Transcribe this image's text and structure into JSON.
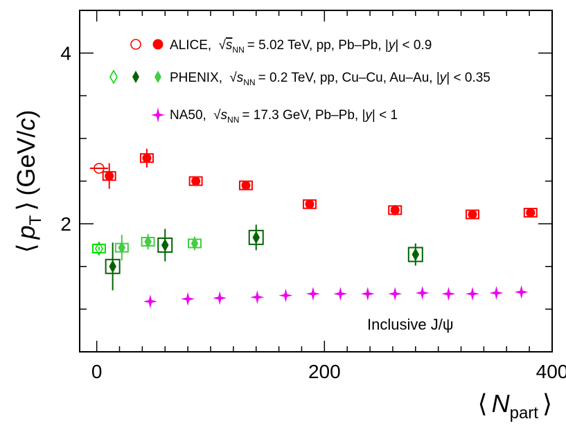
{
  "chart_data": {
    "type": "scatter",
    "title": "",
    "annotation": "Inclusive J/ψ",
    "xlabel": {
      "bracket_open": "⟨",
      "symbol": "N",
      "subscript": "part",
      "bracket_close": "⟩"
    },
    "ylabel": {
      "bracket_open": "⟨",
      "symbol": "p",
      "subscript": "T",
      "bracket_close": "⟩",
      "unit_open": "(GeV/",
      "unit_c": "c",
      "unit_close": ")"
    },
    "xlim": [
      -15,
      400
    ],
    "ylim": [
      0.5,
      4.5
    ],
    "x_ticks": [
      0,
      200,
      400
    ],
    "x_tick_labels": [
      "0",
      "200",
      "400"
    ],
    "y_ticks": [
      2,
      4
    ],
    "y_tick_labels": [
      "2",
      "4"
    ],
    "grid": false,
    "legend": [
      {
        "text": "ALICE, √s_NN = 5.02 TeV, pp, Pb–Pb, |y| < 0.9",
        "pre": "ALICE,",
        "sym": "s",
        "sub": "NN",
        "post": "= 5.02 TeV, pp, Pb–Pb, |",
        "yvar": "y",
        "tail": "| < 0.9",
        "markers": [
          "pp",
          "pbpb"
        ]
      },
      {
        "text": "PHENIX, √s_NN = 0.2 TeV, pp, Cu–Cu, Au–Au, |y| < 0.35",
        "pre": "PHENIX,",
        "sym": "s",
        "sub": "NN",
        "post": "= 0.2 TeV, pp, Cu–Cu, Au–Au, |",
        "yvar": "y",
        "tail": "| < 0.35",
        "markers": [
          "pp",
          "cucu",
          "auau"
        ]
      },
      {
        "text": "NA50, √s_NN = 17.3 GeV, Pb–Pb, |y| < 1",
        "pre": "NA50,",
        "sym": "s",
        "sub": "NN",
        "post": "= 17.3 GeV, Pb–Pb, |",
        "yvar": "y",
        "tail": "| < 1",
        "markers": [
          "pbpb"
        ]
      }
    ],
    "series": [
      {
        "name": "ALICE pp",
        "marker": "open-circle",
        "color": "#ff0000",
        "points": [
          {
            "x": 2,
            "y": 2.65,
            "yerr": 0.0,
            "xerr": 8,
            "sys": false
          }
        ]
      },
      {
        "name": "ALICE Pb–Pb",
        "marker": "filled-circle",
        "color": "#ff0000",
        "points": [
          {
            "x": 11,
            "y": 2.56,
            "yerr": 0.15,
            "sys": true
          },
          {
            "x": 44,
            "y": 2.77,
            "yerr": 0.11,
            "sys": true
          },
          {
            "x": 87,
            "y": 2.5,
            "yerr": 0.05,
            "sys": true
          },
          {
            "x": 131,
            "y": 2.45,
            "yerr": 0.04,
            "sys": true
          },
          {
            "x": 187,
            "y": 2.23,
            "yerr": 0.05,
            "sys": true
          },
          {
            "x": 262,
            "y": 2.16,
            "yerr": 0.06,
            "sys": true
          },
          {
            "x": 330,
            "y": 2.11,
            "yerr": 0.03,
            "sys": true
          },
          {
            "x": 381,
            "y": 2.13,
            "yerr": 0.03,
            "sys": true
          }
        ]
      },
      {
        "name": "PHENIX pp",
        "marker": "open-diamond",
        "color": "#00dd00",
        "points": [
          {
            "x": 2,
            "y": 1.71,
            "yerr": 0.02,
            "sys": true
          }
        ]
      },
      {
        "name": "PHENIX Cu–Cu",
        "marker": "filled-diamond",
        "color": "#44cc44",
        "points": [
          {
            "x": 22,
            "y": 1.72,
            "yerr": 0.15,
            "sys": true
          },
          {
            "x": 45,
            "y": 1.79,
            "yerr": 0.09,
            "sys": true
          },
          {
            "x": 86,
            "y": 1.77,
            "yerr": 0.08,
            "sys": true
          }
        ]
      },
      {
        "name": "PHENIX Au–Au",
        "marker": "filled-diamond",
        "color": "#006400",
        "points": [
          {
            "x": 14,
            "y": 1.5,
            "yerr": 0.28,
            "sys": true
          },
          {
            "x": 60,
            "y": 1.75,
            "yerr": 0.19,
            "sys": true
          },
          {
            "x": 140,
            "y": 1.84,
            "yerr": 0.15,
            "sys": true
          },
          {
            "x": 280,
            "y": 1.64,
            "yerr": 0.13,
            "sys": true
          }
        ]
      },
      {
        "name": "NA50 Pb–Pb",
        "marker": "star",
        "color": "#ee00ee",
        "points": [
          {
            "x": 47,
            "y": 1.09
          },
          {
            "x": 80,
            "y": 1.12
          },
          {
            "x": 108,
            "y": 1.13
          },
          {
            "x": 141,
            "y": 1.14
          },
          {
            "x": 166,
            "y": 1.16
          },
          {
            "x": 190,
            "y": 1.18
          },
          {
            "x": 214,
            "y": 1.18
          },
          {
            "x": 238,
            "y": 1.18
          },
          {
            "x": 262,
            "y": 1.18
          },
          {
            "x": 286,
            "y": 1.19
          },
          {
            "x": 309,
            "y": 1.18
          },
          {
            "x": 330,
            "y": 1.18
          },
          {
            "x": 351,
            "y": 1.19
          },
          {
            "x": 373,
            "y": 1.2
          }
        ]
      }
    ]
  }
}
